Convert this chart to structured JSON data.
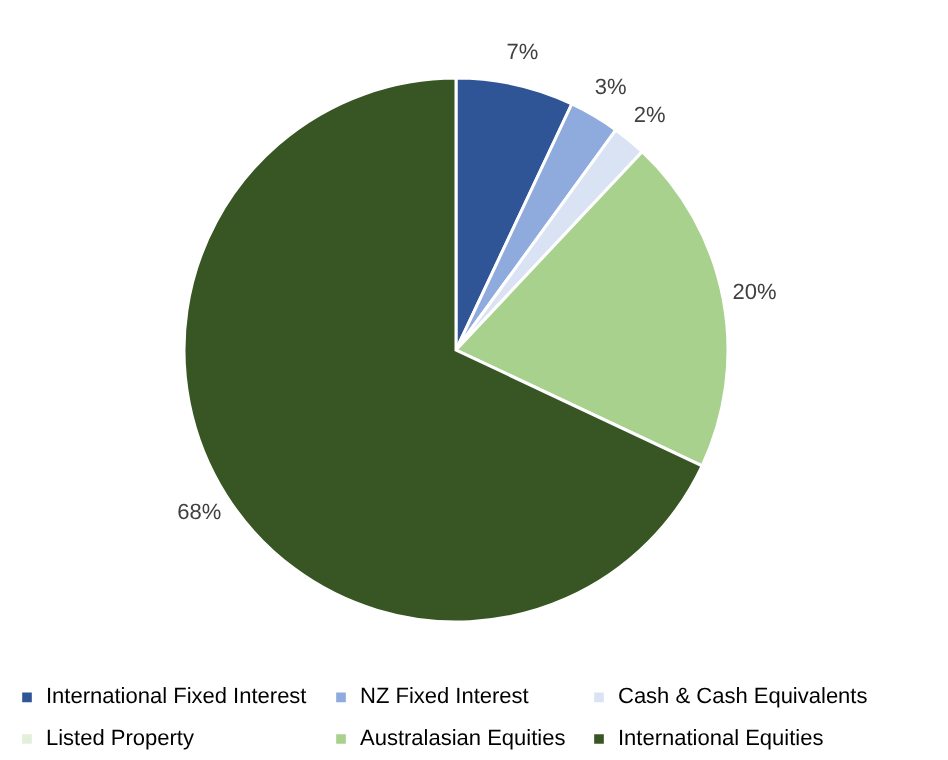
{
  "chart_data": {
    "type": "pie",
    "categories": [
      "International Fixed Interest",
      "NZ Fixed Interest",
      "Cash & Cash Equivalents",
      "Listed Property",
      "Australasian Equities",
      "International Equities"
    ],
    "values": [
      7,
      3,
      2,
      0,
      20,
      68
    ],
    "colors": [
      "#2f5597",
      "#8faadc",
      "#dae3f3",
      "#e2f0d9",
      "#a9d18e",
      "#375623"
    ],
    "value_labels": [
      "7%",
      "3%",
      "2%",
      null,
      "20%",
      "68%"
    ],
    "legend": "bottom"
  }
}
